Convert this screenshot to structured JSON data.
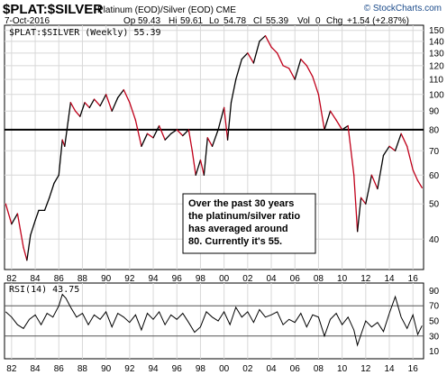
{
  "header": {
    "symbol": "$PLAT:$SILVER",
    "description": "Platinum (EOD)/Silver (EOD) CME",
    "date": "7-Oct-2016",
    "brand": "© StockCharts.com",
    "quote": {
      "op_label": "Op",
      "op": "59.43",
      "hi_label": "Hi",
      "hi": "59.61",
      "lo_label": "Lo",
      "lo": "54.78",
      "cl_label": "Cl",
      "cl": "55.39",
      "vol_label": "Vol",
      "vol": "0",
      "chg_label": "Chg",
      "chg": "+1.54 (+2.87%)"
    }
  },
  "annotation": {
    "lines": [
      "Over the past 30 years",
      "the platinum/silver ratio",
      "has averaged around",
      "80. Currently it's 55."
    ]
  },
  "colors": {
    "up": "#000000",
    "down": "#c0001a",
    "rsi": "#000000",
    "ref_line": "#000000",
    "grid": "#d8d8d8",
    "brand": "#1a4a8a"
  },
  "chart_data": [
    {
      "type": "line",
      "legend_label": "$PLAT:$SILVER (Weekly) 55.39",
      "y_scale": "log",
      "ylim": [
        33,
        155
      ],
      "yticks": [
        40,
        50,
        60,
        70,
        80,
        90,
        100,
        110,
        120,
        130,
        140,
        150
      ],
      "xlim": [
        1981.4,
        2016.9
      ],
      "x_tick_labels": [
        "82",
        "84",
        "86",
        "88",
        "90",
        "92",
        "94",
        "96",
        "98",
        "00",
        "02",
        "04",
        "06",
        "08",
        "10",
        "12",
        "14",
        "16"
      ],
      "x_tick_years": [
        1982,
        1984,
        1986,
        1988,
        1990,
        1992,
        1994,
        1996,
        1998,
        2000,
        2002,
        2004,
        2006,
        2008,
        2010,
        2012,
        2014,
        2016
      ],
      "grid": true,
      "reference_line": 80,
      "series": [
        {
          "x": [
            1981.5,
            1982.0,
            1982.5,
            1983.0,
            1983.3,
            1983.6,
            1984.0,
            1984.3,
            1984.8,
            1985.2,
            1985.6,
            1986.0,
            1986.3,
            1986.5,
            1986.8,
            1987.0,
            1987.4,
            1987.8,
            1988.2,
            1988.6,
            1989.0,
            1989.5,
            1990.0,
            1990.5,
            1991.0,
            1991.5,
            1992.0,
            1992.5,
            1993.0,
            1993.5,
            1994.0,
            1994.5,
            1995.0,
            1995.5,
            1996.0,
            1996.5,
            1997.0,
            1997.3,
            1997.6,
            1998.0,
            1998.3,
            1998.6,
            1999.0,
            1999.5,
            2000.0,
            2000.3,
            2000.6,
            2001.0,
            2001.5,
            2002.0,
            2002.5,
            2003.0,
            2003.5,
            2004.0,
            2004.5,
            2005.0,
            2005.5,
            2006.0,
            2006.5,
            2007.0,
            2007.5,
            2008.0,
            2008.5,
            2009.0,
            2009.5,
            2010.0,
            2010.5,
            2011.0,
            2011.3,
            2011.6,
            2012.0,
            2012.5,
            2013.0,
            2013.5,
            2014.0,
            2014.5,
            2015.0,
            2015.5,
            2016.0,
            2016.4,
            2016.77
          ],
          "values": [
            50,
            44,
            47,
            38,
            35,
            41,
            45,
            48,
            48,
            52,
            57,
            60,
            75,
            72,
            85,
            95,
            90,
            87,
            95,
            92,
            97,
            93,
            100,
            90,
            98,
            103,
            95,
            85,
            72,
            78,
            76,
            82,
            75,
            78,
            80,
            77,
            80,
            70,
            60,
            66,
            60,
            76,
            72,
            80,
            92,
            75,
            95,
            110,
            125,
            130,
            122,
            140,
            145,
            135,
            130,
            120,
            118,
            110,
            125,
            120,
            112,
            100,
            80,
            90,
            85,
            80,
            82,
            60,
            42,
            52,
            50,
            60,
            55,
            68,
            72,
            70,
            78,
            72,
            62,
            58,
            55.39
          ]
        }
      ]
    },
    {
      "type": "line",
      "legend_label": "RSI(14) 43.75",
      "ylim": [
        0,
        100
      ],
      "yticks": [
        10,
        30,
        50,
        70,
        90
      ],
      "reference_lines": [
        30,
        70
      ],
      "xlim": [
        1981.4,
        2016.9
      ],
      "x_tick_labels": [
        "82",
        "84",
        "86",
        "88",
        "90",
        "92",
        "94",
        "96",
        "98",
        "00",
        "02",
        "04",
        "06",
        "08",
        "10",
        "12",
        "14",
        "16"
      ],
      "x_tick_years": [
        1982,
        1984,
        1986,
        1988,
        1990,
        1992,
        1994,
        1996,
        1998,
        2000,
        2002,
        2004,
        2006,
        2008,
        2010,
        2012,
        2014,
        2016
      ],
      "series": [
        {
          "x": [
            1981.5,
            1982.0,
            1982.5,
            1983.0,
            1983.5,
            1984.0,
            1984.5,
            1985.0,
            1985.5,
            1986.0,
            1986.3,
            1986.6,
            1987.0,
            1987.5,
            1988.0,
            1988.5,
            1989.0,
            1989.5,
            1990.0,
            1990.5,
            1991.0,
            1991.5,
            1992.0,
            1992.5,
            1993.0,
            1993.5,
            1994.0,
            1994.5,
            1995.0,
            1995.5,
            1996.0,
            1996.5,
            1997.0,
            1997.5,
            1998.0,
            1998.5,
            1999.0,
            1999.5,
            2000.0,
            2000.5,
            2001.0,
            2001.5,
            2002.0,
            2002.5,
            2003.0,
            2003.5,
            2004.0,
            2004.5,
            2005.0,
            2005.5,
            2006.0,
            2006.5,
            2007.0,
            2007.5,
            2008.0,
            2008.5,
            2009.0,
            2009.5,
            2010.0,
            2010.5,
            2011.0,
            2011.3,
            2011.6,
            2012.0,
            2012.5,
            2013.0,
            2013.5,
            2014.0,
            2014.5,
            2015.0,
            2015.5,
            2016.0,
            2016.4,
            2016.77
          ],
          "values": [
            62,
            55,
            45,
            40,
            52,
            58,
            45,
            60,
            55,
            70,
            85,
            80,
            68,
            55,
            60,
            45,
            58,
            52,
            62,
            42,
            60,
            55,
            48,
            58,
            38,
            60,
            52,
            62,
            45,
            58,
            52,
            60,
            48,
            35,
            42,
            62,
            55,
            50,
            62,
            45,
            68,
            55,
            62,
            48,
            65,
            55,
            58,
            62,
            45,
            52,
            48,
            60,
            42,
            58,
            55,
            30,
            52,
            60,
            45,
            55,
            38,
            18,
            32,
            50,
            42,
            48,
            36,
            60,
            82,
            55,
            40,
            58,
            32,
            43.75
          ]
        }
      ]
    }
  ]
}
